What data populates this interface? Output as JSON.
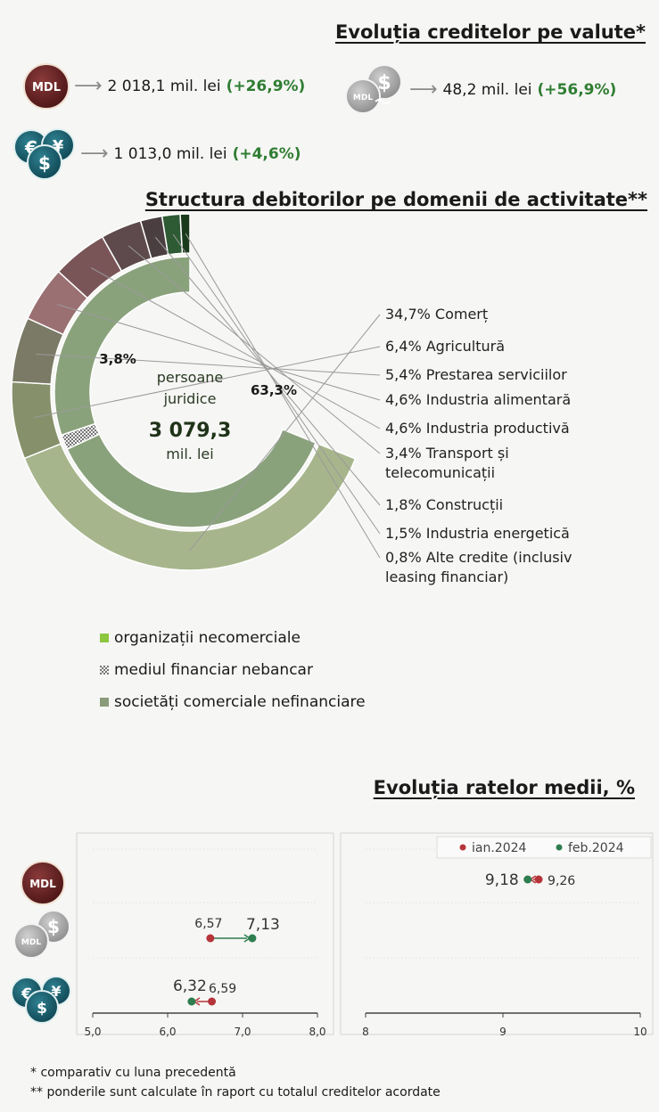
{
  "currency_section": {
    "title": "Evoluția creditelor pe valute*",
    "items": [
      {
        "icon": "mdl-coin-icon",
        "coin_label": "MDL",
        "value": "2 018,1 mil. lei",
        "change": "(+26,9%)"
      },
      {
        "icon": "mdl-usd-linked-coins-icon",
        "coin_label": "MDL",
        "value": "48,2 mil. lei",
        "change": "(+56,9%)"
      },
      {
        "icon": "foreign-currency-coins-icon",
        "coin_label": "€ $ ¥",
        "value": "1 013,0 mil. lei",
        "change": "(+4,6%)"
      }
    ]
  },
  "structure_section": {
    "title": "Structura debitorilor pe domenii de activitate**",
    "center": {
      "line1": "persoane",
      "line2": "juridice",
      "total": "3 079,3",
      "unit": "mil. lei"
    },
    "inner_labels": {
      "financial": "3,8%",
      "commercial": "63,3%"
    },
    "legend": [
      {
        "label": "organizații necomerciale",
        "color": "#8dc63f"
      },
      {
        "label": "mediul financiar nebancar",
        "color": "#9a9a9a"
      },
      {
        "label": "societăți comerciale nefinanciare",
        "color": "#8a9b7a"
      }
    ]
  },
  "rates_section": {
    "title": "Evoluția ratelor medii, %",
    "legend": [
      {
        "label": "ian.2024",
        "color": "#b5343a"
      },
      {
        "label": "feb.2024",
        "color": "#2e7d4f"
      }
    ]
  },
  "chart_data": [
    {
      "type": "pie",
      "subtype": "sunburst-half-donut",
      "title": "Structura debitorilor pe domenii de activitate**",
      "total": 3079.3,
      "total_unit": "mil. lei",
      "inner_ring": [
        {
          "name": "mediul financiar nebancar",
          "label": "3,8%",
          "value": 3.8,
          "color": "#9a9a9a"
        },
        {
          "name": "societăți comerciale nefinanciare",
          "label": "63,3%",
          "value": 63.3,
          "color": "#8aa27c"
        }
      ],
      "outer_ring": [
        {
          "label": "34,7%",
          "name": "Comerț",
          "value": 34.7,
          "color": "#a7b58c"
        },
        {
          "label": "6,4%",
          "name": "Agricultură",
          "value": 6.4,
          "color": "#86906a"
        },
        {
          "label": "5,4%",
          "name": "Prestarea serviciilor",
          "value": 5.4,
          "color": "#7a7a66"
        },
        {
          "label": "4,6%",
          "name": "Industria alimentară",
          "value": 4.6,
          "color": "#9a7072"
        },
        {
          "label": "4,6%",
          "name": "Industria productivă",
          "value": 4.6,
          "color": "#7a5558"
        },
        {
          "label": "3,4%",
          "name": "Transport și telecomunicații",
          "value": 3.4,
          "color": "#5e4a4c"
        },
        {
          "label": "1,8%",
          "name": "Construcții",
          "value": 1.8,
          "color": "#4a3e40"
        },
        {
          "label": "1,5%",
          "name": "Industria energetică",
          "value": 1.5,
          "color": "#2e5a34"
        },
        {
          "label": "0,8%",
          "name": "Alte credite (inclusiv leasing financiar)",
          "value": 0.8,
          "color": "#1a3a1c"
        }
      ]
    },
    {
      "type": "scatter",
      "subtype": "dumbbell",
      "title": "Evoluția ratelor medii, %",
      "panels": [
        {
          "xlim": [
            5.0,
            8.0
          ],
          "xticks": [
            "5,0",
            "6,0",
            "7,0",
            "8,0"
          ],
          "rows": [
            {
              "category": "MDL legate de valută",
              "ian": 6.57,
              "feb": 7.13,
              "ian_label": "6,57",
              "feb_label": "7,13"
            },
            {
              "category": "valută străină",
              "ian": 6.59,
              "feb": 6.32,
              "ian_label": "6,59",
              "feb_label": "6,32"
            }
          ]
        },
        {
          "xlim": [
            8,
            10
          ],
          "xticks": [
            "8",
            "9",
            "10"
          ],
          "rows": [
            {
              "category": "MDL",
              "ian": 9.26,
              "feb": 9.18,
              "ian_label": "9,26",
              "feb_label": "9,18"
            }
          ]
        }
      ],
      "series": [
        {
          "name": "ian.2024",
          "color": "#b5343a"
        },
        {
          "name": "feb.2024",
          "color": "#2e7d4f"
        }
      ],
      "grid": true
    }
  ],
  "footnotes": [
    "* comparativ cu luna precedentă",
    "** ponderile sunt calculate în raport cu totalul creditelor acordate"
  ]
}
